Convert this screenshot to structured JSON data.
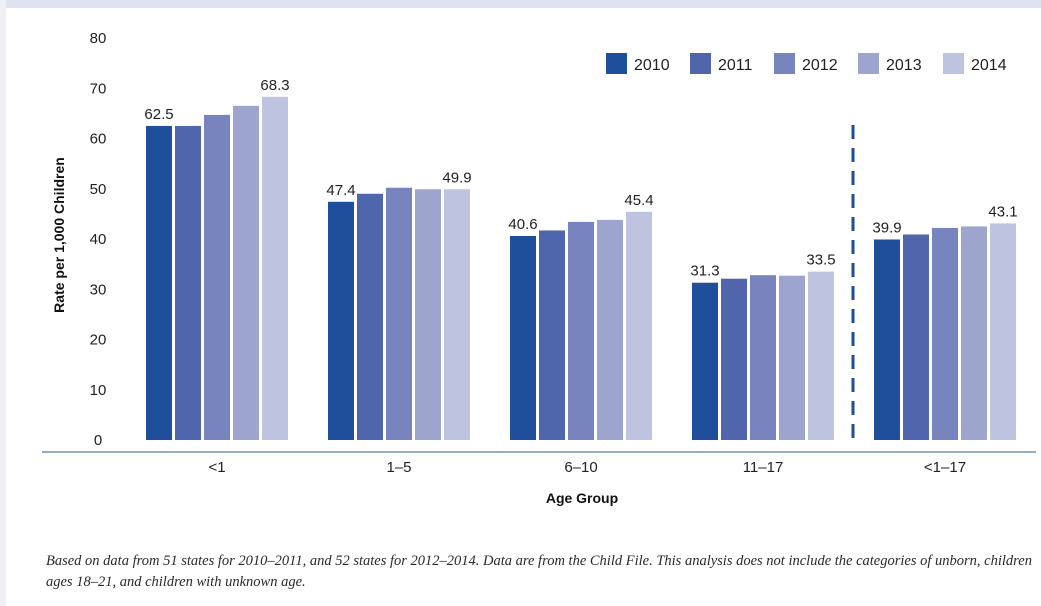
{
  "chart_data": {
    "type": "bar",
    "xlabel": "Age Group",
    "ylabel": "Rate per 1,000 Children",
    "ylim": [
      0,
      80
    ],
    "yticks": [
      0,
      10,
      20,
      30,
      40,
      50,
      60,
      70,
      80
    ],
    "categories": [
      "<1",
      "1–5",
      "6–10",
      "11–17",
      "<1–17"
    ],
    "series": [
      {
        "name": "2010",
        "color": "#1f4e9a",
        "values": [
          62.5,
          47.4,
          40.6,
          31.3,
          39.9
        ]
      },
      {
        "name": "2011",
        "color": "#4f66ad",
        "values": [
          62.5,
          49.0,
          41.7,
          32.1,
          40.9
        ]
      },
      {
        "name": "2012",
        "color": "#7784bd",
        "values": [
          64.7,
          50.2,
          43.4,
          32.8,
          42.2
        ]
      },
      {
        "name": "2013",
        "color": "#9da5cf",
        "values": [
          66.5,
          49.9,
          43.8,
          32.7,
          42.5
        ]
      },
      {
        "name": "2014",
        "color": "#bec3e0",
        "values": [
          68.3,
          49.9,
          45.4,
          33.5,
          43.1
        ]
      }
    ],
    "data_labels": [
      {
        "category": "<1",
        "series": "2010",
        "text": "62.5"
      },
      {
        "category": "<1",
        "series": "2014",
        "text": "68.3"
      },
      {
        "category": "1–5",
        "series": "2010",
        "text": "47.4"
      },
      {
        "category": "1–5",
        "series": "2014",
        "text": "49.9"
      },
      {
        "category": "6–10",
        "series": "2010",
        "text": "40.6"
      },
      {
        "category": "6–10",
        "series": "2014",
        "text": "45.4"
      },
      {
        "category": "11–17",
        "series": "2010",
        "text": "31.3"
      },
      {
        "category": "11–17",
        "series": "2014",
        "text": "33.5"
      },
      {
        "category": "<1–17",
        "series": "2010",
        "text": "39.9"
      },
      {
        "category": "<1–17",
        "series": "2014",
        "text": "43.1"
      }
    ],
    "legend_position": "top-right",
    "grid": false,
    "separator_before_category": "<1–17"
  },
  "note": "Based on data from 51 states for 2010–2011, and 52 states for 2012–2014. Data are from the Child File. This analysis does not include the categories of unborn, children ages 18–21, and children with unknown age."
}
